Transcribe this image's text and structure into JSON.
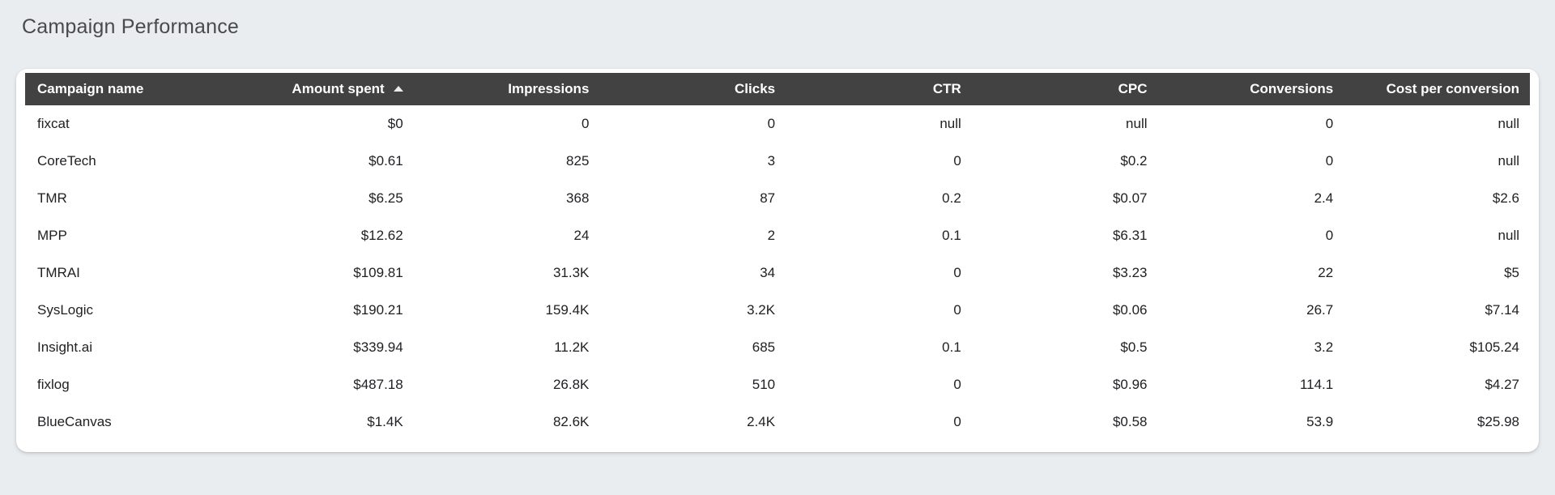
{
  "page": {
    "title": "Campaign Performance"
  },
  "colors": {
    "page_background": "#e9edf0",
    "card_background": "#ffffff",
    "header_background": "#424242",
    "header_text": "#ffffff",
    "cell_text": "#202124",
    "title_text": "#4a4a4a"
  },
  "chart_data": {
    "type": "table",
    "title": "Campaign Performance",
    "columns": [
      {
        "label": "Campaign name",
        "align": "left"
      },
      {
        "label": "Amount spent",
        "align": "right"
      },
      {
        "label": "Impressions",
        "align": "right"
      },
      {
        "label": "Clicks",
        "align": "right"
      },
      {
        "label": "CTR",
        "align": "right"
      },
      {
        "label": "CPC",
        "align": "right"
      },
      {
        "label": "Conversions",
        "align": "right"
      },
      {
        "label": "Cost per conversion",
        "align": "right"
      }
    ],
    "sort": {
      "column": "Amount spent",
      "direction": "ascending"
    },
    "rows": [
      [
        "fixcat",
        "$0",
        "0",
        "0",
        "null",
        "null",
        "0",
        "null"
      ],
      [
        "CoreTech",
        "$0.61",
        "825",
        "3",
        "0",
        "$0.2",
        "0",
        "null"
      ],
      [
        "TMR",
        "$6.25",
        "368",
        "87",
        "0.2",
        "$0.07",
        "2.4",
        "$2.6"
      ],
      [
        "MPP",
        "$12.62",
        "24",
        "2",
        "0.1",
        "$6.31",
        "0",
        "null"
      ],
      [
        "TMRAI",
        "$109.81",
        "31.3K",
        "34",
        "0",
        "$3.23",
        "22",
        "$5"
      ],
      [
        "SysLogic",
        "$190.21",
        "159.4K",
        "3.2K",
        "0",
        "$0.06",
        "26.7",
        "$7.14"
      ],
      [
        "Insight.ai",
        "$339.94",
        "11.2K",
        "685",
        "0.1",
        "$0.5",
        "3.2",
        "$105.24"
      ],
      [
        "fixlog",
        "$487.18",
        "26.8K",
        "510",
        "0",
        "$0.96",
        "114.1",
        "$4.27"
      ],
      [
        "BlueCanvas",
        "$1.4K",
        "82.6K",
        "2.4K",
        "0",
        "$0.58",
        "53.9",
        "$25.98"
      ]
    ]
  }
}
